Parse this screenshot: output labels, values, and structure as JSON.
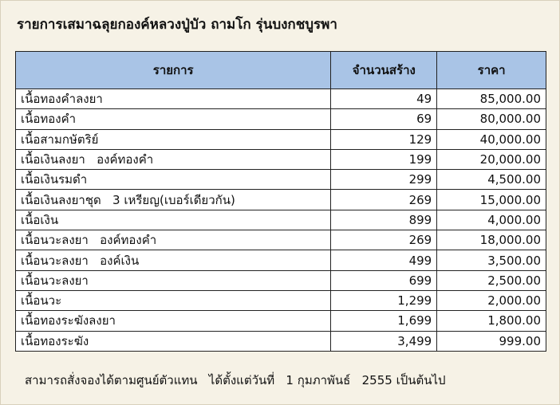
{
  "title": "รายการเสมาฉลุยกองค์หลวงปู่บัว ถามโก รุ่นบงกชบูรพา",
  "table": {
    "header": [
      "รายการ",
      "จำนวนสร้าง",
      "ราคา"
    ],
    "rows": [
      [
        "เนื้อทองคำลงยา",
        "49",
        "85,000.00"
      ],
      [
        "เนื้อทองคำ",
        "69",
        "80,000.00"
      ],
      [
        "เนื้อสามกษัตริย์",
        "129",
        "40,000.00"
      ],
      [
        "เนื้อเงินลงยา   องค์ทองคำ",
        "199",
        "20,000.00"
      ],
      [
        "เนื้อเงินรมดำ",
        "299",
        "4,500.00"
      ],
      [
        "เนื้อเงินลงยาชุด   3 เหรียญ(เบอร์เดียวกัน)",
        "269",
        "15,000.00"
      ],
      [
        "เนื้อเงิน",
        "899",
        "4,000.00"
      ],
      [
        "เนื้อนวะลงยา   องค์ทองคำ",
        "269",
        "18,000.00"
      ],
      [
        "เนื้อนวะลงยา   องค์เงิน",
        "499",
        "3,500.00"
      ],
      [
        "เนื้อนวะลงยา",
        "699",
        "2,500.00"
      ],
      [
        "เนื้อนวะ",
        "1,299",
        "2,000.00"
      ],
      [
        "เนื้อทองระฆังลงยา",
        "1,699",
        "1,800.00"
      ],
      [
        "เนื้อทองระฆัง",
        "3,499",
        "999.00"
      ]
    ]
  },
  "footer": "สามารถสั่งจองได้ตามศูนย์ตัวแทน   ได้ตั้งแต่วันที่   1 กุมภาพันธ์   2555 เป็นต้นไป"
}
